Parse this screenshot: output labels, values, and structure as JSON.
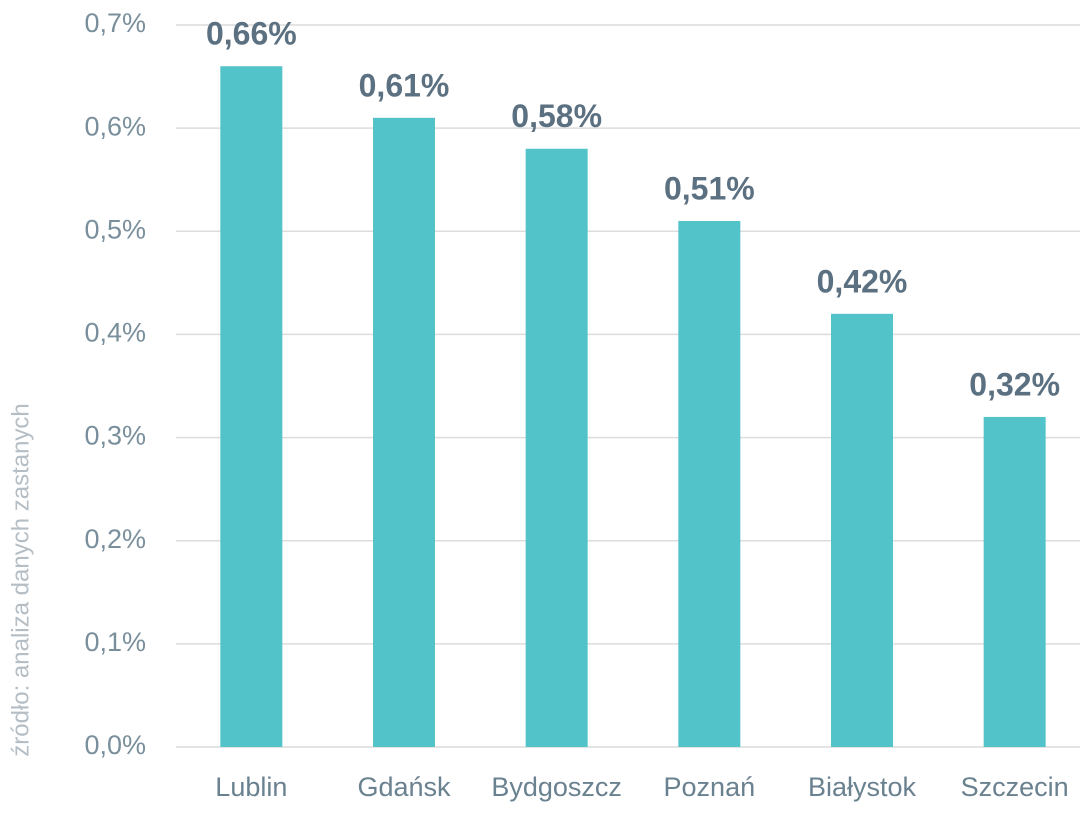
{
  "chart_data": {
    "type": "bar",
    "source": "źródło: analiza danych zastanych",
    "categories": [
      "Lublin",
      "Gdańsk",
      "Bydgoszcz",
      "Poznań",
      "Białystok",
      "Szczecin"
    ],
    "values": [
      0.66,
      0.61,
      0.58,
      0.51,
      0.42,
      0.32
    ],
    "value_labels": [
      "0,66%",
      "0,61%",
      "0,58%",
      "0,51%",
      "0,42%",
      "0,32%"
    ],
    "color": "#52c3c9",
    "ylim": [
      0,
      0.7
    ],
    "yticks": [
      {
        "value": 0,
        "label": "0,0%"
      },
      {
        "value": 0.1,
        "label": "0,1%"
      },
      {
        "value": 0.2,
        "label": "0,2%"
      },
      {
        "value": 0.3,
        "label": "0,3%"
      },
      {
        "value": 0.4,
        "label": "0,4%"
      },
      {
        "value": 0.5,
        "label": "0,5%"
      },
      {
        "value": 0.6,
        "label": "0,6%"
      },
      {
        "value": 0.7,
        "label": "0,7%"
      }
    ],
    "grid": true
  }
}
